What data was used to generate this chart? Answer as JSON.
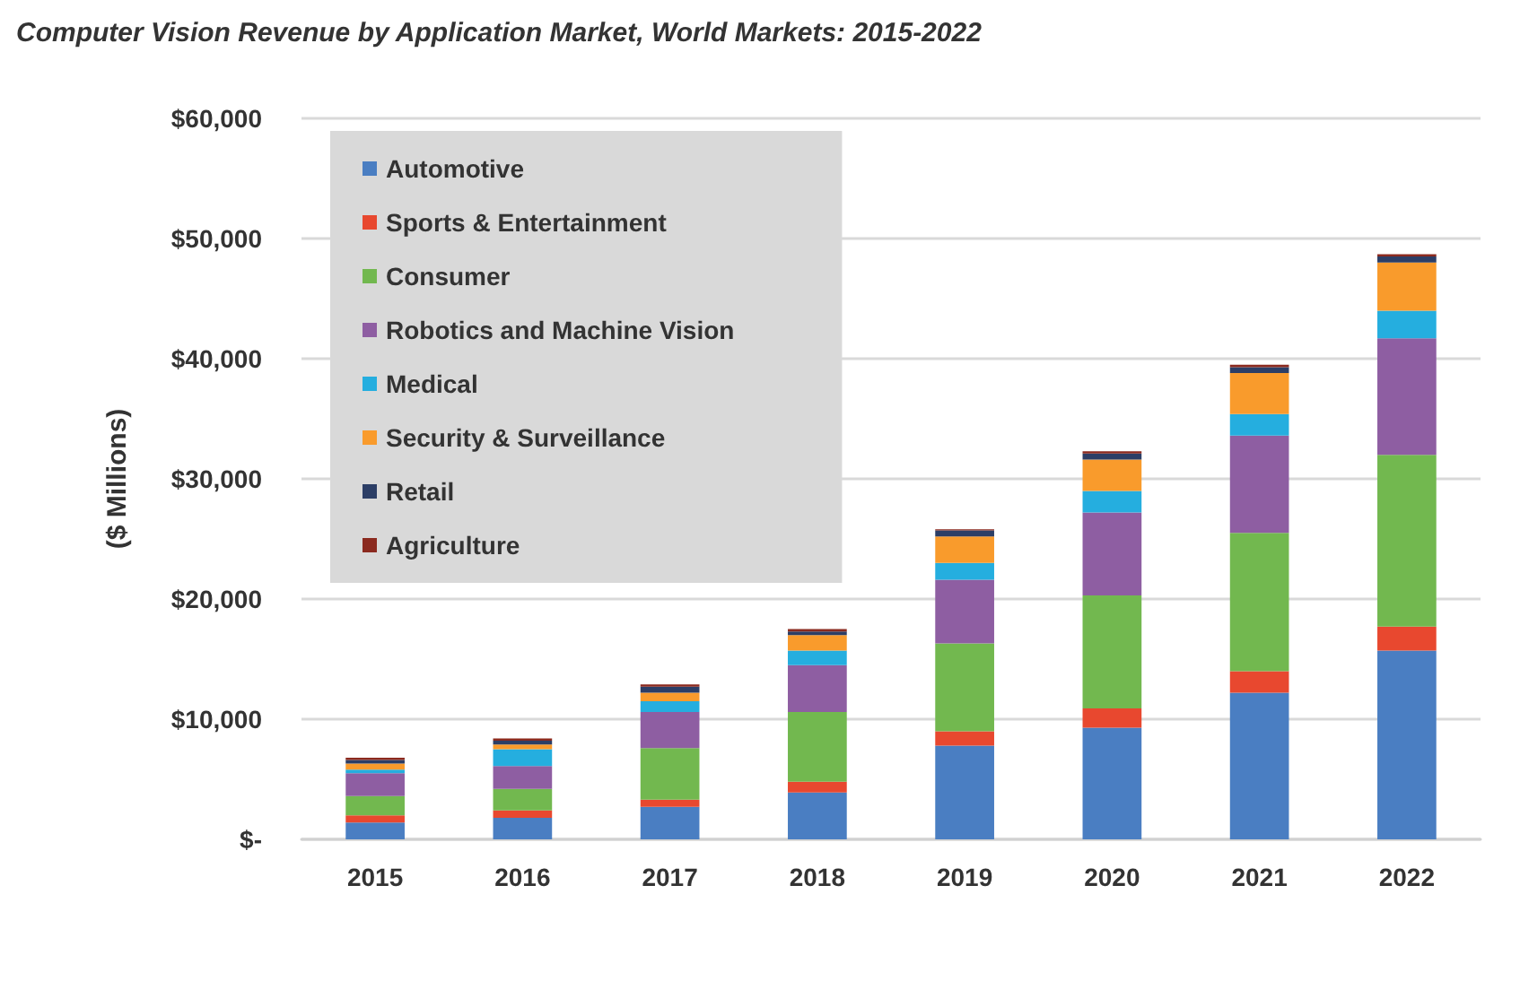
{
  "chart_data": {
    "type": "bar",
    "stacked": true,
    "title": "Computer Vision Revenue by Application Market, World Markets: 2015-2022",
    "ylabel": "($ Millions)",
    "categories": [
      "2015",
      "2016",
      "2017",
      "2018",
      "2019",
      "2020",
      "2021",
      "2022"
    ],
    "series": [
      {
        "name": "Automotive",
        "color": "#4a7ec2",
        "values": [
          1400,
          1800,
          2700,
          3900,
          7800,
          9300,
          12200,
          15700
        ]
      },
      {
        "name": "Sports & Entertainment",
        "color": "#e8482f",
        "values": [
          600,
          600,
          600,
          900,
          1200,
          1600,
          1800,
          2000
        ]
      },
      {
        "name": "Consumer",
        "color": "#72b84f",
        "values": [
          1600,
          1800,
          4300,
          5800,
          7300,
          9400,
          11500,
          14300
        ]
      },
      {
        "name": "Robotics and Machine Vision",
        "color": "#8e5ea2",
        "values": [
          1900,
          1900,
          3000,
          3900,
          5300,
          6900,
          8100,
          9700
        ]
      },
      {
        "name": "Medical",
        "color": "#25aedf",
        "values": [
          300,
          1400,
          900,
          1200,
          1400,
          1800,
          1800,
          2300
        ]
      },
      {
        "name": "Security & Surveillance",
        "color": "#f99b2c",
        "values": [
          500,
          400,
          700,
          1300,
          2200,
          2600,
          3400,
          4000
        ]
      },
      {
        "name": "Retail",
        "color": "#2c3e66",
        "values": [
          300,
          300,
          500,
          300,
          500,
          500,
          500,
          500
        ]
      },
      {
        "name": "Agriculture",
        "color": "#8b2a1f",
        "values": [
          200,
          200,
          200,
          200,
          100,
          200,
          200,
          200
        ]
      }
    ],
    "ylim": [
      0,
      60000
    ],
    "yticks": [
      {
        "value": 0,
        "label": "$-"
      },
      {
        "value": 10000,
        "label": "$10,000"
      },
      {
        "value": 20000,
        "label": "$20,000"
      },
      {
        "value": 30000,
        "label": "$30,000"
      },
      {
        "value": 40000,
        "label": "$40,000"
      },
      {
        "value": 50000,
        "label": "$50,000"
      },
      {
        "value": 60000,
        "label": "$60,000"
      }
    ],
    "grid": "y",
    "legend": "top left"
  }
}
